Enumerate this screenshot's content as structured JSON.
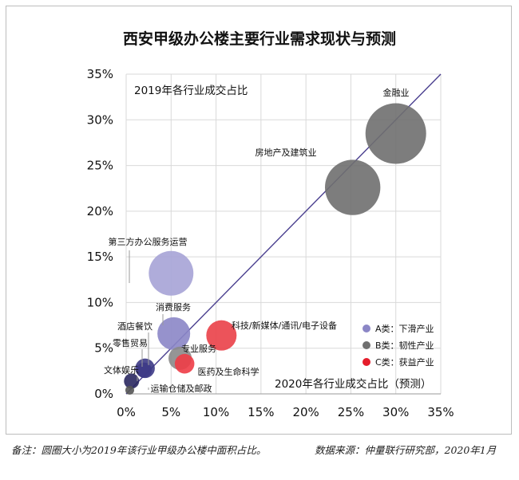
{
  "chart_data": {
    "type": "scatter",
    "title": "西安甲级办公楼主要行业需求现状与预测",
    "annotation_top": "2019年各行业成交占比",
    "annotation_bottom": "2020年各行业成交占比（预测）",
    "xlim": [
      0,
      35
    ],
    "ylim": [
      0,
      35
    ],
    "x_ticks": [
      "0%",
      "5%",
      "10%",
      "15%",
      "20%",
      "25%",
      "30%",
      "35%"
    ],
    "y_ticks": [
      "0%",
      "5%",
      "10%",
      "15%",
      "20%",
      "25%",
      "30%",
      "35%"
    ],
    "grid": true,
    "reference_line": "y = x",
    "legend": {
      "placement": "inside-bottom-right",
      "items": [
        {
          "name": "A类：下滑产业",
          "color": "#8b86c6"
        },
        {
          "name": "B类：韧性产业",
          "color": "#6f6f6f"
        },
        {
          "name": "C类：获益产业",
          "color": "#e51d2b"
        }
      ]
    },
    "bubble_size_note": "圆圈大小为2019年该行业甲级办公楼中面积占比",
    "points": [
      {
        "label": "金融业",
        "x": 30.0,
        "y": 28.5,
        "size": 24,
        "category": "B",
        "color": "#6f6f6f"
      },
      {
        "label": "房地产及建筑业",
        "x": 25.2,
        "y": 22.6,
        "size": 20,
        "category": "B",
        "color": "#6f6f6f"
      },
      {
        "label": "第三方办公服务运营",
        "x": 5.0,
        "y": 13.2,
        "size": 13,
        "category": "A",
        "color": "#a6a3d6"
      },
      {
        "label": "消费服务",
        "x": 5.3,
        "y": 6.6,
        "size": 7,
        "category": "A",
        "color": "#8b86c6"
      },
      {
        "label": "科技/新媒体/通讯/电子设备",
        "x": 10.6,
        "y": 6.4,
        "size": 6,
        "category": "C",
        "color": "#ea4048"
      },
      {
        "label": "专业服务",
        "x": 6.0,
        "y": 3.9,
        "size": 3.5,
        "category": "B",
        "color": "#8a8a8a"
      },
      {
        "label": "医药及生命科学",
        "x": 6.5,
        "y": 3.3,
        "size": 2.5,
        "category": "C",
        "color": "#ee3c46"
      },
      {
        "label": "酒店餐饮",
        "x": 2.1,
        "y": 2.8,
        "size": 2.5,
        "category": "A",
        "color": "#3d3a86"
      },
      {
        "label": "零售贸易",
        "x": 2.0,
        "y": 2.6,
        "size": 1.5,
        "category": "A",
        "color": "#3d3a86"
      },
      {
        "label": "文体娱乐",
        "x": 0.6,
        "y": 1.4,
        "size": 1.5,
        "category": "A",
        "color": "#2a2860"
      },
      {
        "label": "运输仓储及邮政",
        "x": 0.4,
        "y": 0.4,
        "size": 0.5,
        "category": "B",
        "color": "#555555"
      }
    ]
  },
  "footer": {
    "note": "备注：圆圈大小为2019年该行业甲级办公楼中面积占比。",
    "source": "数据来源：仲量联行研究部，2020年1月"
  }
}
